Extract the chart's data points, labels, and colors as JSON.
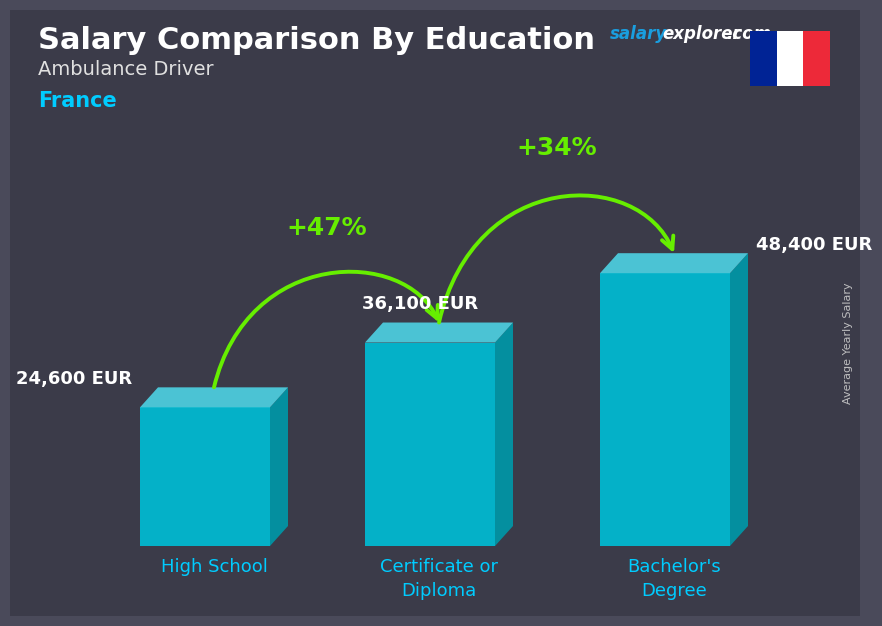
{
  "title": "Salary Comparison By Education",
  "subtitle_job": "Ambulance Driver",
  "subtitle_country": "France",
  "categories": [
    "High School",
    "Certificate or\nDiploma",
    "Bachelor's\nDegree"
  ],
  "values": [
    24600,
    36100,
    48400
  ],
  "value_labels": [
    "24,600 EUR",
    "36,100 EUR",
    "48,400 EUR"
  ],
  "pct_labels": [
    "+47%",
    "+34%"
  ],
  "bar_color_face": "#00bcd4",
  "bar_color_right": "#0097a7",
  "bar_color_top": "#4dd0e1",
  "bg_color": "#4a4a5a",
  "title_color": "#ffffff",
  "subtitle_job_color": "#e0e0e0",
  "subtitle_country_color": "#00ccff",
  "category_color": "#00ccff",
  "value_color": "#ffffff",
  "pct_color": "#aaff00",
  "arrow_color": "#66ee00",
  "watermark_salary_color": "#1a9edf",
  "watermark_explorer_color": "#ffffff",
  "side_label": "Average Yearly Salary",
  "side_label_color": "#cccccc",
  "flag_blue": "#002395",
  "flag_white": "#ffffff",
  "flag_red": "#ED2939"
}
